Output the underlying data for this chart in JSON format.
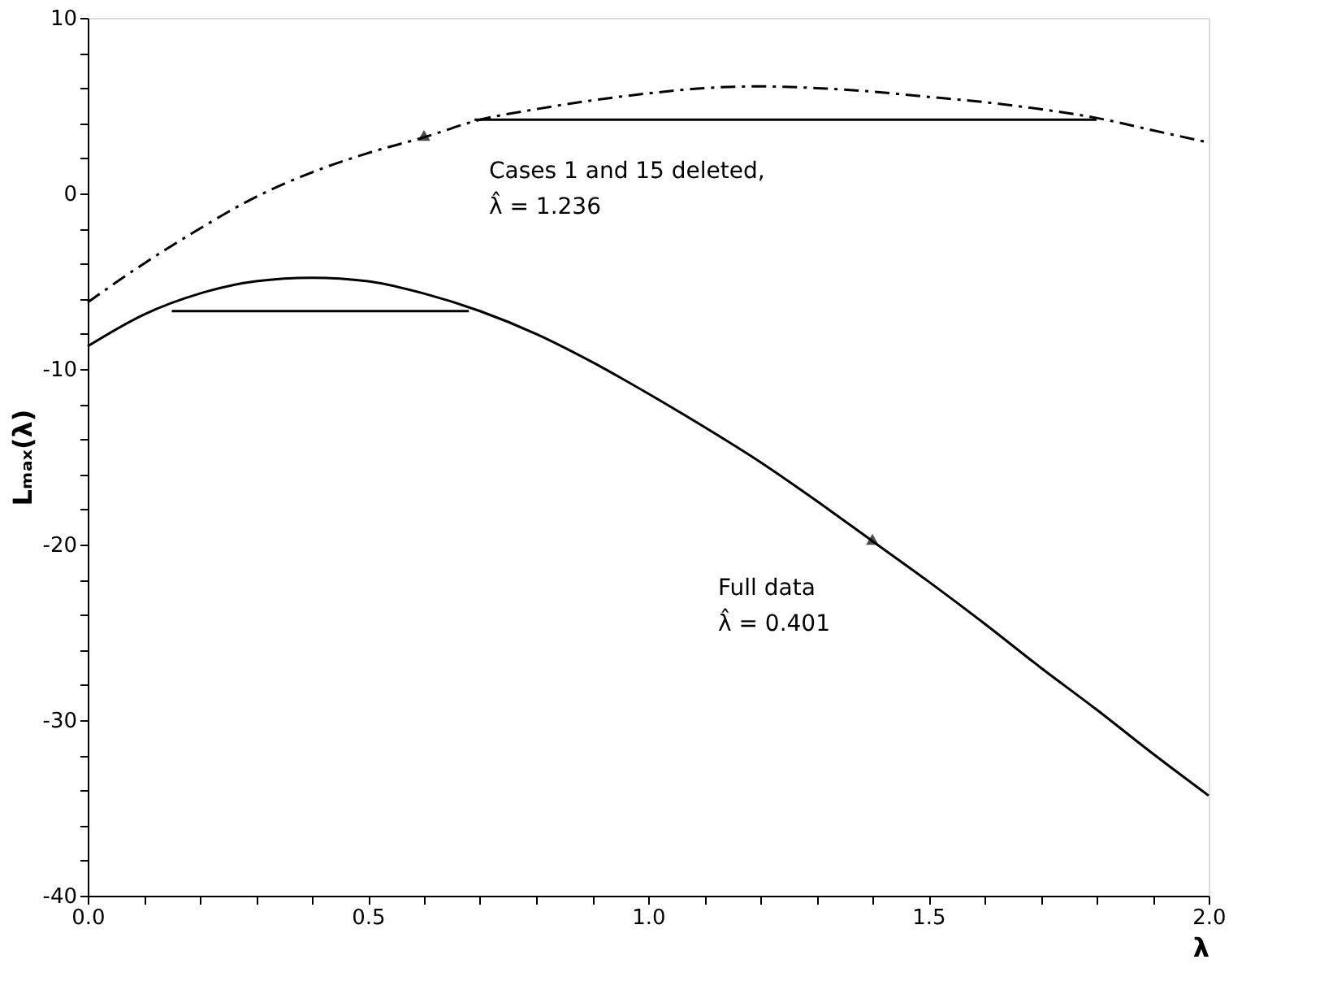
{
  "chart_data": {
    "type": "line",
    "xlabel": "λ",
    "ylabel": "Lₘₐₓ(λ)",
    "xlim": [
      0,
      2
    ],
    "ylim": [
      -40,
      10
    ],
    "xticks": [
      {
        "value": 0,
        "label": "0.0"
      },
      {
        "value": 0.1,
        "label": null
      },
      {
        "value": 0.2,
        "label": null
      },
      {
        "value": 0.3,
        "label": null
      },
      {
        "value": 0.4,
        "label": null
      },
      {
        "value": 0.5,
        "label": "0.5"
      },
      {
        "value": 0.6,
        "label": null
      },
      {
        "value": 0.7,
        "label": null
      },
      {
        "value": 0.8,
        "label": null
      },
      {
        "value": 0.9,
        "label": null
      },
      {
        "value": 1,
        "label": "1.0"
      },
      {
        "value": 1.1,
        "label": null
      },
      {
        "value": 1.2,
        "label": null
      },
      {
        "value": 1.3,
        "label": null
      },
      {
        "value": 1.4,
        "label": null
      },
      {
        "value": 1.5,
        "label": "1.5"
      },
      {
        "value": 1.6,
        "label": null
      },
      {
        "value": 1.7,
        "label": null
      },
      {
        "value": 1.8,
        "label": null
      },
      {
        "value": 1.9,
        "label": null
      },
      {
        "value": 2,
        "label": "2.0"
      }
    ],
    "yticks": [
      -40,
      {
        "value": -38,
        "label": null
      },
      {
        "value": -36,
        "label": null
      },
      {
        "value": -34,
        "label": null
      },
      {
        "value": -32,
        "label": null
      },
      -30,
      {
        "value": -28,
        "label": null
      },
      {
        "value": -26,
        "label": null
      },
      {
        "value": -24,
        "label": null
      },
      {
        "value": -22,
        "label": null
      },
      -20,
      {
        "value": -18,
        "label": null
      },
      {
        "value": -16,
        "label": null
      },
      {
        "value": -14,
        "label": null
      },
      {
        "value": -12,
        "label": null
      },
      -10,
      {
        "value": -8,
        "label": null
      },
      {
        "value": -6,
        "label": null
      },
      {
        "value": -4,
        "label": null
      },
      {
        "value": -2,
        "label": null
      },
      0,
      {
        "value": 2,
        "label": null
      },
      {
        "value": 4,
        "label": null
      },
      {
        "value": 6,
        "label": null
      },
      {
        "value": 8,
        "label": null
      },
      10
    ],
    "x": [
      0,
      0.1,
      0.2,
      0.3,
      0.4,
      0.5,
      0.6,
      0.7,
      0.8,
      0.9,
      1.0,
      1.1,
      1.2,
      1.3,
      1.4,
      1.5,
      1.6,
      1.7,
      1.8,
      1.9,
      2.0
    ],
    "series": [
      {
        "color": "#000000",
        "line_style": "solid",
        "values": [
          -8.7,
          -6.9,
          -5.7,
          -5.0,
          -4.8,
          -5.0,
          -5.7,
          -6.7,
          -8.0,
          -9.6,
          -11.4,
          -13.3,
          -15.3,
          -17.5,
          -19.8,
          -22.1,
          -24.5,
          -27.0,
          -29.4,
          -31.9,
          -34.3
        ]
      },
      {
        "color": "#000000",
        "line_style": "dashed",
        "values": [
          -6.2,
          -4.0,
          -2.0,
          -0.2,
          1.2,
          2.3,
          3.2,
          4.2,
          4.8,
          5.3,
          5.7,
          6.0,
          6.1,
          6.0,
          5.8,
          5.5,
          5.2,
          4.8,
          4.3,
          3.6,
          2.9
        ]
      },
      {
        "color": "#000000",
        "line_style": "solid",
        "x": [
          0.15,
          0.68
        ],
        "values": [
          -6.7,
          -6.7
        ]
      },
      {
        "color": "#000000",
        "line_style": "solid",
        "x": [
          0.69,
          1.8
        ],
        "values": [
          4.2,
          4.2
        ]
      }
    ],
    "annotations": [
      {
        "text": "Cases 1 and 15 deleted,\nλ̂ = 1.236",
        "x": 0.6,
        "y": 3.2
      },
      {
        "text": "Full data\nλ̂ = 0.401",
        "x": 1.4,
        "y": -19.8
      }
    ],
    "grid": false,
    "marker": "none"
  }
}
